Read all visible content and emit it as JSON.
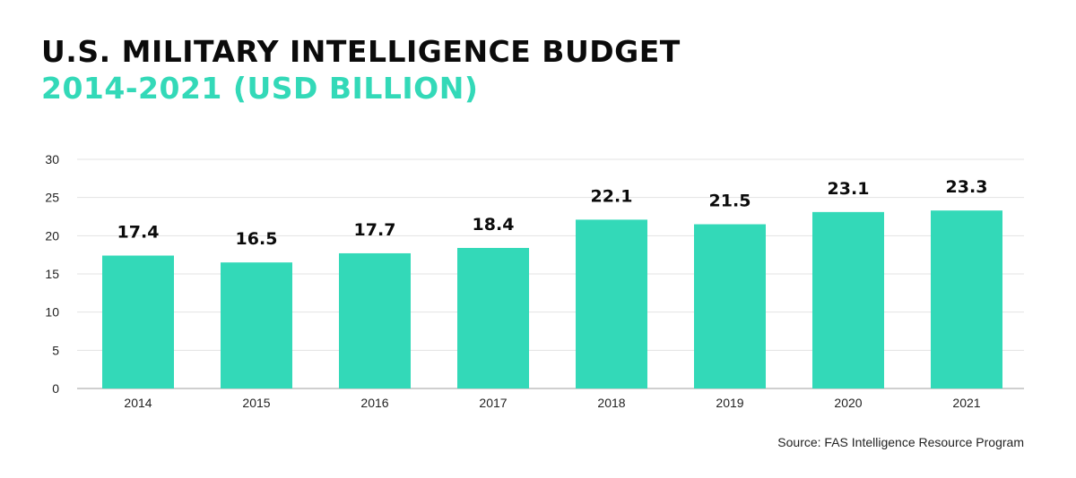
{
  "title": "U.S. MILITARY INTELLIGENCE BUDGET",
  "subtitle": "2014-2021 (USD BILLION)",
  "source": "Source: FAS Intelligence Resource Program",
  "colors": {
    "title": "#0b0b0b",
    "subtitle": "#33d9b8",
    "bar": "#33d9b8",
    "grid": "#e3e3e3",
    "axis_text": "#222222",
    "data_label": "#0b0b0b"
  },
  "chart_data": {
    "type": "bar",
    "categories": [
      "2014",
      "2015",
      "2016",
      "2017",
      "2018",
      "2019",
      "2020",
      "2021"
    ],
    "values": [
      17.4,
      16.5,
      17.7,
      18.4,
      22.1,
      21.5,
      23.1,
      23.3
    ],
    "data_labels": [
      "17.4",
      "16.5",
      "17.7",
      "18.4",
      "22.1",
      "21.5",
      "23.1",
      "23.3"
    ],
    "ylim": [
      0,
      30
    ],
    "yticks": [
      "0",
      "5",
      "10",
      "15",
      "20",
      "25",
      "30"
    ],
    "xlabel": "",
    "ylabel": "",
    "grid": true,
    "legend": "none"
  }
}
